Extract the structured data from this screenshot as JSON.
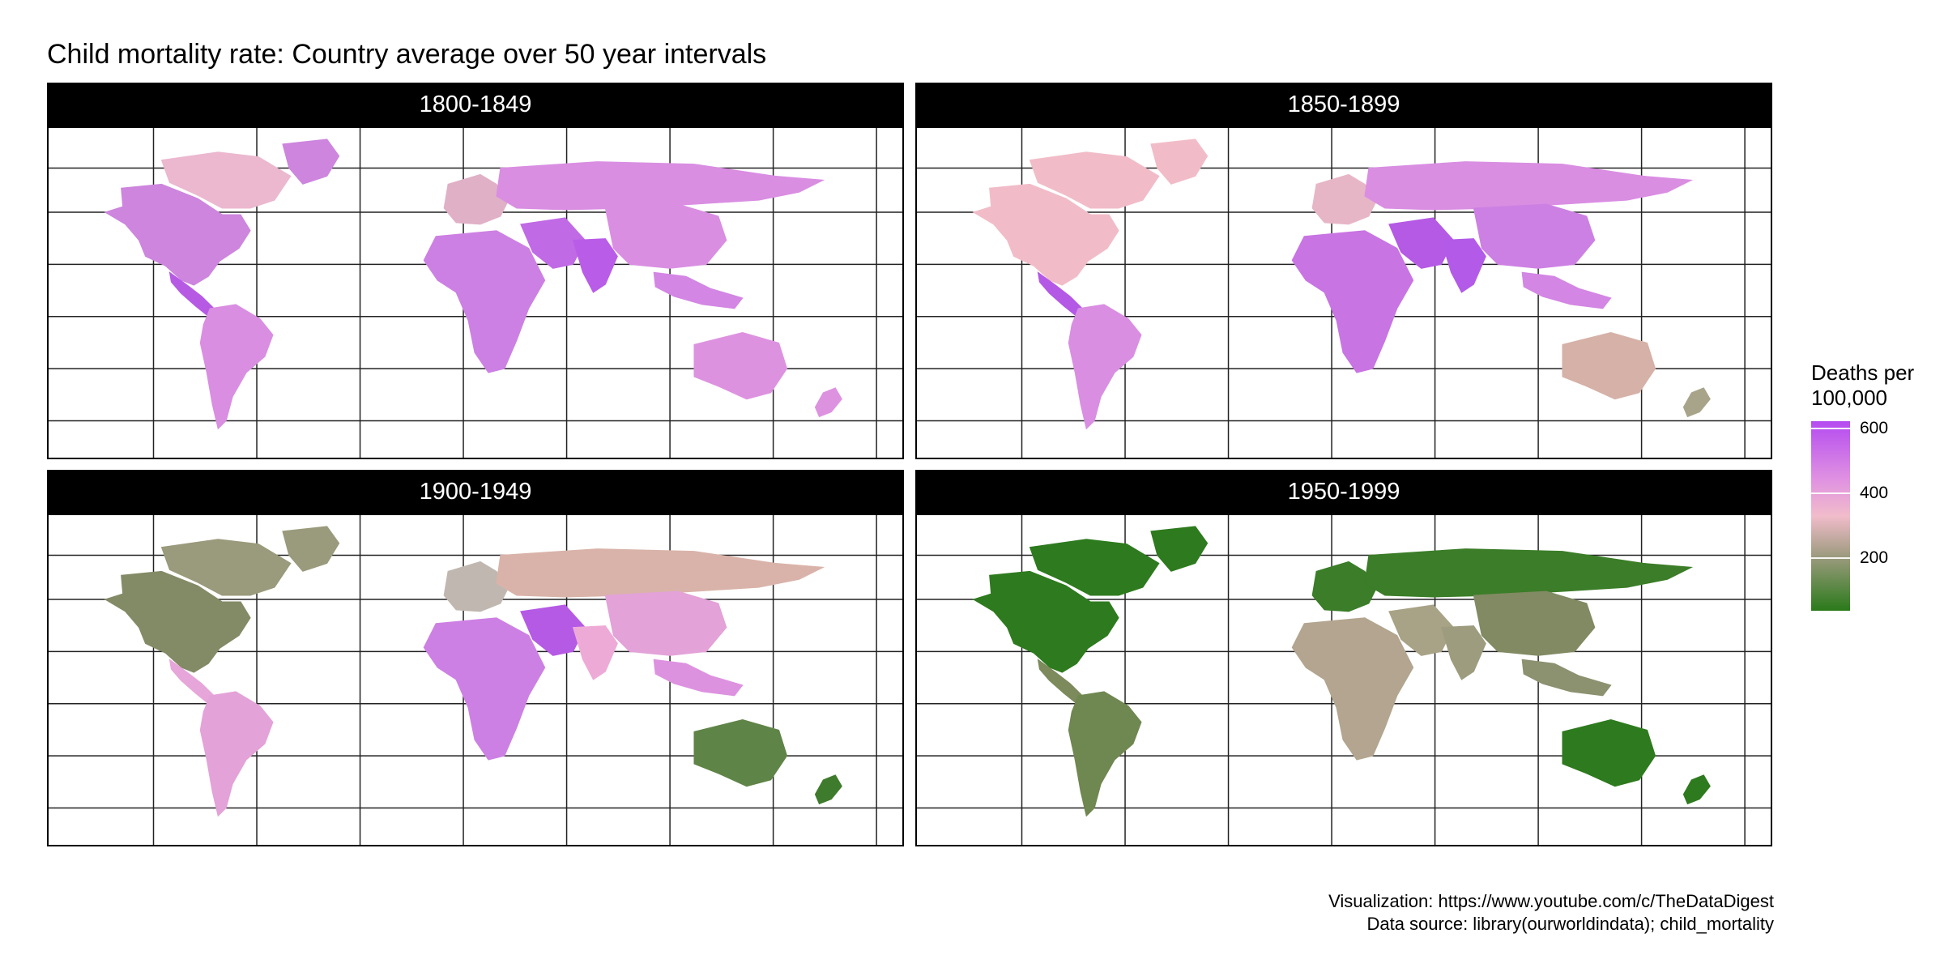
{
  "title": "Child mortality rate: Country average over 50 year intervals",
  "legend": {
    "title_line1": "Deaths per",
    "title_line2": "100,000",
    "ticks": [
      "600",
      "400",
      "200"
    ],
    "tick_values": [
      600,
      400,
      200
    ],
    "range": [
      0,
      650
    ],
    "colors": {
      "low": "#2a7a1a",
      "mid_low": "#9a9a7c",
      "mid": "#f1bccb",
      "mid_high": "#df90e2",
      "high": "#b44bf0"
    }
  },
  "panels": [
    {
      "label": "1800-1849",
      "colors": {
        "north_america": "#cd85de",
        "greenland": "#cd85de",
        "canada": "#ebb8cf",
        "central_america": "#b65ae4",
        "south_america": "#d98ee2",
        "europe": "#e0b0c6",
        "russia": "#d98ee2",
        "africa": "#cd80e3",
        "middle_east": "#c06ae5",
        "india": "#b95ce8",
        "china": "#d98ee2",
        "se_asia": "#d386e3",
        "australia": "#dd92e0",
        "new_zealand": "#dd92e0"
      }
    },
    {
      "label": "1850-1899",
      "colors": {
        "north_america": "#f1bcc8",
        "greenland": "#f1bcc8",
        "canada": "#f1bcc8",
        "central_america": "#b458e6",
        "south_america": "#d98ee2",
        "europe": "#e7b6c6",
        "russia": "#d98ee2",
        "africa": "#c874e3",
        "middle_east": "#b55ae5",
        "india": "#b35ae8",
        "china": "#cd80e3",
        "se_asia": "#d386e3",
        "australia": "#d6b1a7",
        "new_zealand": "#a7a48a"
      }
    },
    {
      "label": "1900-1949",
      "colors": {
        "north_america": "#838a66",
        "greenland": "#9a9a7c",
        "canada": "#9a9a7c",
        "central_america": "#e6a6d9",
        "south_america": "#e3a2d8",
        "europe": "#c0b8b0",
        "russia": "#d9b3a9",
        "africa": "#cd80e3",
        "middle_east": "#b55ae5",
        "india": "#eeaad7",
        "china": "#e3a2d8",
        "se_asia": "#dd92e0",
        "australia": "#5f8447",
        "new_zealand": "#3f7b2c"
      }
    },
    {
      "label": "1950-1999",
      "colors": {
        "north_america": "#2e7a1e",
        "greenland": "#2e7a1e",
        "canada": "#2e7a1e",
        "central_america": "#7c8a5c",
        "south_america": "#6f8750",
        "europe": "#3b7d28",
        "russia": "#3b7d28",
        "africa": "#b3a58f",
        "middle_east": "#a8a386",
        "india": "#9d9c7e",
        "china": "#818a63",
        "se_asia": "#8c9170",
        "australia": "#2e7a1e",
        "new_zealand": "#2e7a1e"
      }
    }
  ],
  "caption": {
    "line1": "Visualization: https://www.youtube.com/c/TheDataDigest",
    "line2": "Data source: library(ourworldindata); child_mortality"
  }
}
